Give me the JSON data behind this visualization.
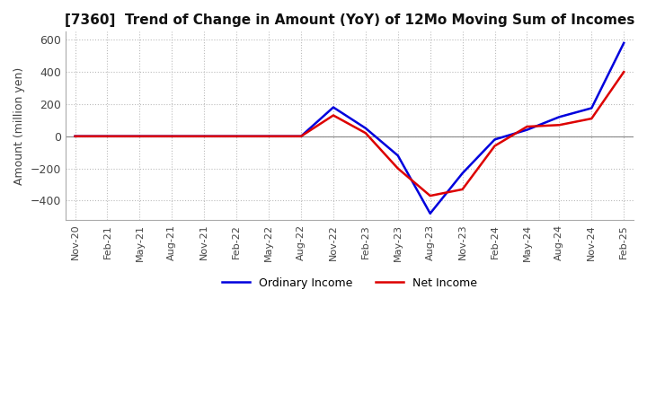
{
  "title": "[7360]  Trend of Change in Amount (YoY) of 12Mo Moving Sum of Incomes",
  "ylabel": "Amount (million yen)",
  "background_color": "#ffffff",
  "grid_color": "#bbbbbb",
  "x_labels": [
    "Nov-20",
    "Feb-21",
    "May-21",
    "Aug-21",
    "Nov-21",
    "Feb-22",
    "May-22",
    "Aug-22",
    "Nov-22",
    "Feb-23",
    "May-23",
    "Aug-23",
    "Nov-23",
    "Feb-24",
    "May-24",
    "Aug-24",
    "Nov-24",
    "Feb-25"
  ],
  "ylim": [
    -520,
    650
  ],
  "yticks": [
    -400,
    -200,
    0,
    200,
    400,
    600
  ],
  "ordinary_income": [
    0,
    0,
    0,
    0,
    0,
    0,
    0,
    0,
    180,
    50,
    -120,
    -480,
    -230,
    -20,
    40,
    120,
    175,
    580
  ],
  "net_income": [
    0,
    0,
    0,
    0,
    0,
    0,
    0,
    0,
    130,
    20,
    -200,
    -370,
    -330,
    -60,
    60,
    70,
    110,
    400
  ],
  "ordinary_income_color": "#0000dd",
  "net_income_color": "#dd0000",
  "line_width": 1.8
}
